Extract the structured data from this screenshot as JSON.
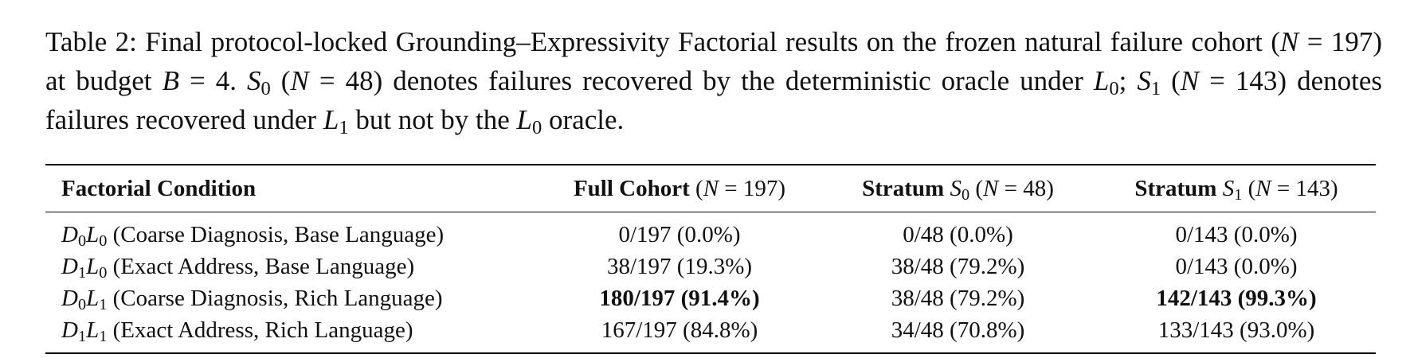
{
  "caption": [
    "Table 2: Final protocol-locked Grounding–Expressivity Factorial results on the frozen natural failure cohort (",
    {
      "i": "N"
    },
    " = 197) at budget ",
    {
      "i": "B"
    },
    " = 4. ",
    {
      "i": "S",
      "sub": "0"
    },
    " (",
    {
      "i": "N"
    },
    " = 48) denotes failures recovered by the deterministic oracle under ",
    {
      "i": "L",
      "sub": "0"
    },
    "; ",
    {
      "i": "S",
      "sub": "1"
    },
    " (",
    {
      "i": "N"
    },
    " = 143) denotes failures recovered under ",
    {
      "i": "L",
      "sub": "1"
    },
    " but not by the ",
    {
      "i": "L",
      "sub": "0"
    },
    " oracle."
  ],
  "table": {
    "header": [
      [
        {
          "b": "Factorial Condition"
        }
      ],
      [
        {
          "b": "Full Cohort"
        },
        " (",
        {
          "i": "N"
        },
        " = 197)"
      ],
      [
        {
          "b": "Stratum"
        },
        " ",
        {
          "i": "S",
          "sub": "0"
        },
        " (",
        {
          "i": "N"
        },
        " = 48)"
      ],
      [
        {
          "b": "Stratum"
        },
        " ",
        {
          "i": "S",
          "sub": "1"
        },
        " (",
        {
          "i": "N"
        },
        " = 143)"
      ]
    ],
    "rows": [
      [
        [
          {
            "i": "D",
            "sub": "0"
          },
          {
            "i": "L",
            "sub": "0"
          },
          " (Coarse Diagnosis, Base Language)"
        ],
        [
          "0/197 (0.0%)"
        ],
        [
          "0/48 (0.0%)"
        ],
        [
          "0/143 (0.0%)"
        ]
      ],
      [
        [
          {
            "i": "D",
            "sub": "1"
          },
          {
            "i": "L",
            "sub": "0"
          },
          " (Exact Address, Base Language)"
        ],
        [
          "38/197 (19.3%)"
        ],
        [
          "38/48 (79.2%)"
        ],
        [
          "0/143 (0.0%)"
        ]
      ],
      [
        [
          {
            "i": "D",
            "sub": "0"
          },
          {
            "i": "L",
            "sub": "1"
          },
          " (Coarse Diagnosis, Rich Language)"
        ],
        [
          {
            "b": "180/197 (91.4%)"
          }
        ],
        [
          "38/48 (79.2%)"
        ],
        [
          {
            "b": "142/143 (99.3%)"
          }
        ]
      ],
      [
        [
          {
            "i": "D",
            "sub": "1"
          },
          {
            "i": "L",
            "sub": "1"
          },
          " (Exact Address, Rich Language)"
        ],
        [
          "167/197 (84.8%)"
        ],
        [
          "34/48 (70.8%)"
        ],
        [
          "133/143 (93.0%)"
        ]
      ]
    ]
  }
}
